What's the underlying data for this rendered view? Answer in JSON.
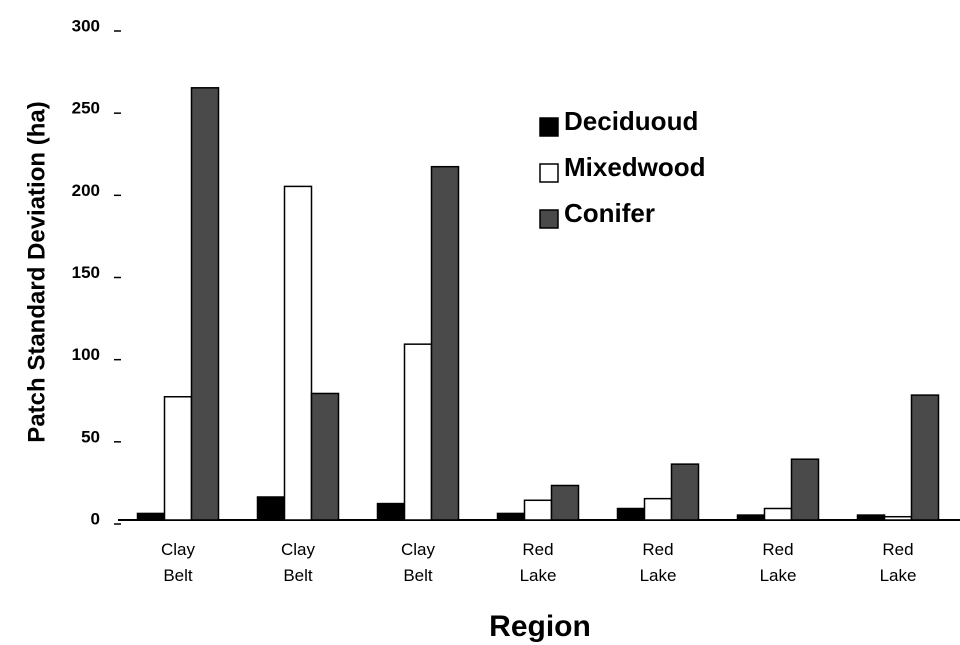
{
  "chart_data": {
    "type": "bar",
    "x_label": "Region",
    "y_label": "Patch Standard Deviation (ha)",
    "categories": [
      "Clay Belt",
      "Clay Belt",
      "Clay Belt",
      "Red Lake",
      "Red Lake",
      "Red Lake",
      "Red Lake"
    ],
    "series": [
      {
        "name": "Deciduoud",
        "color": "#000000",
        "values": [
          4,
          14,
          10,
          4,
          7,
          3,
          3
        ]
      },
      {
        "name": "Mixedwood",
        "color": "#ffffff",
        "values": [
          75,
          203,
          107,
          12,
          13,
          7,
          2
        ]
      },
      {
        "name": "Conifer",
        "color": "#4a4a4a",
        "values": [
          263,
          77,
          215,
          21,
          34,
          37,
          76
        ]
      }
    ],
    "ylim": [
      0,
      300
    ],
    "yticks": [
      0,
      50,
      100,
      150,
      200,
      250,
      300
    ],
    "legend": "upper right",
    "grid": false
  }
}
